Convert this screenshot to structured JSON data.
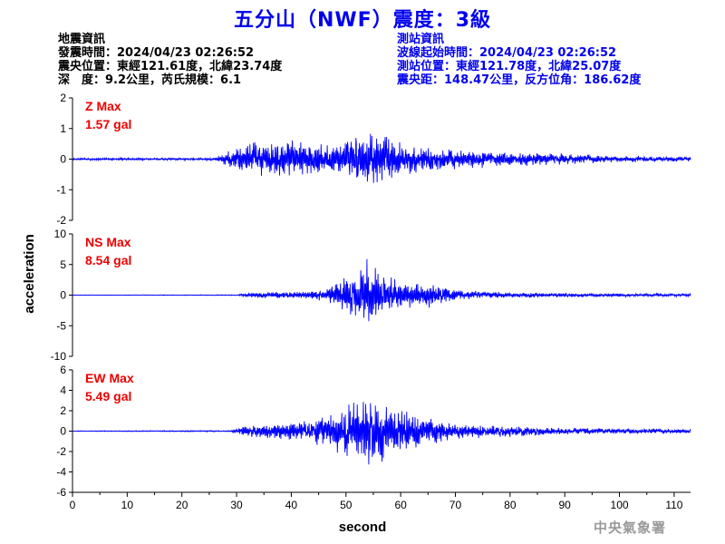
{
  "title": "五分山（NWF）震度：3級",
  "event_info": {
    "heading": "地震資訊",
    "time": "發震時間：2024/04/23 02:26:52",
    "epicenter": "震央位置：東經121.61度，北緯23.74度",
    "depth_magnitude": "深　度：9.2公里，芮氏規模：6.1"
  },
  "station_info": {
    "heading": "測站資訊",
    "wave_start": "波線起始時間：2024/04/23 02:26:52",
    "location": "測站位置：東經121.78度，北緯25.07度",
    "distance": "震央距：148.47公里，反方位角：186.62度"
  },
  "agency": "中央氣象署",
  "colors": {
    "title": "#0000ee",
    "trace": "#0000ff",
    "max_label": "#ee0000",
    "axis": "#000000",
    "watermark": "#9a9a9a"
  },
  "chart_data": [
    {
      "type": "line",
      "component": "Z",
      "max_label": "Z Max",
      "max_value": "1.57 gal",
      "ylim": [
        -2,
        2
      ],
      "yticks": [
        "-2",
        "-1",
        "0",
        "1",
        "2"
      ],
      "xlim": [
        0,
        113
      ],
      "envelope": [
        [
          0,
          0.05
        ],
        [
          26,
          0.06
        ],
        [
          28,
          0.35
        ],
        [
          31,
          0.7
        ],
        [
          34,
          0.9
        ],
        [
          37,
          0.85
        ],
        [
          40,
          0.9
        ],
        [
          43,
          0.8
        ],
        [
          46,
          0.8
        ],
        [
          50,
          0.9
        ],
        [
          54,
          1.5
        ],
        [
          57,
          1.2
        ],
        [
          60,
          0.9
        ],
        [
          64,
          0.6
        ],
        [
          68,
          0.5
        ],
        [
          72,
          0.45
        ],
        [
          80,
          0.35
        ],
        [
          90,
          0.25
        ],
        [
          100,
          0.15
        ],
        [
          113,
          0.1
        ]
      ]
    },
    {
      "type": "line",
      "component": "NS",
      "max_label": "NS Max",
      "max_value": "8.54 gal",
      "ylim": [
        -10,
        10
      ],
      "yticks": [
        "-10",
        "-5",
        "0",
        "5",
        "10"
      ],
      "xlim": [
        0,
        113
      ],
      "envelope": [
        [
          0,
          0.05
        ],
        [
          30,
          0.1
        ],
        [
          32,
          0.6
        ],
        [
          40,
          0.9
        ],
        [
          46,
          1.3
        ],
        [
          49,
          4.0
        ],
        [
          52,
          6.0
        ],
        [
          54,
          8.5
        ],
        [
          57,
          5.0
        ],
        [
          60,
          3.5
        ],
        [
          64,
          3.0
        ],
        [
          67,
          2.5
        ],
        [
          70,
          1.3
        ],
        [
          80,
          0.6
        ],
        [
          90,
          0.5
        ],
        [
          100,
          0.4
        ],
        [
          113,
          0.3
        ]
      ]
    },
    {
      "type": "line",
      "component": "EW",
      "max_label": "EW Max",
      "max_value": "5.49 gal",
      "ylim": [
        -6,
        6
      ],
      "yticks": [
        "-6",
        "-4",
        "-2",
        "0",
        "2",
        "4",
        "6"
      ],
      "xlim": [
        0,
        113
      ],
      "envelope": [
        [
          0,
          0.05
        ],
        [
          29,
          0.1
        ],
        [
          31,
          0.7
        ],
        [
          36,
          1.2
        ],
        [
          40,
          1.5
        ],
        [
          44,
          1.7
        ],
        [
          48,
          3.0
        ],
        [
          51,
          4.5
        ],
        [
          54,
          5.4
        ],
        [
          58,
          4.0
        ],
        [
          61,
          3.5
        ],
        [
          64,
          2.5
        ],
        [
          68,
          1.5
        ],
        [
          72,
          1.0
        ],
        [
          80,
          0.8
        ],
        [
          90,
          0.5
        ],
        [
          100,
          0.4
        ],
        [
          113,
          0.3
        ]
      ]
    }
  ],
  "x_axis": {
    "label": "second",
    "ticks": [
      "0",
      "10",
      "20",
      "30",
      "40",
      "50",
      "60",
      "70",
      "80",
      "90",
      "100",
      "110"
    ]
  },
  "y_axis_label": "acceleration"
}
